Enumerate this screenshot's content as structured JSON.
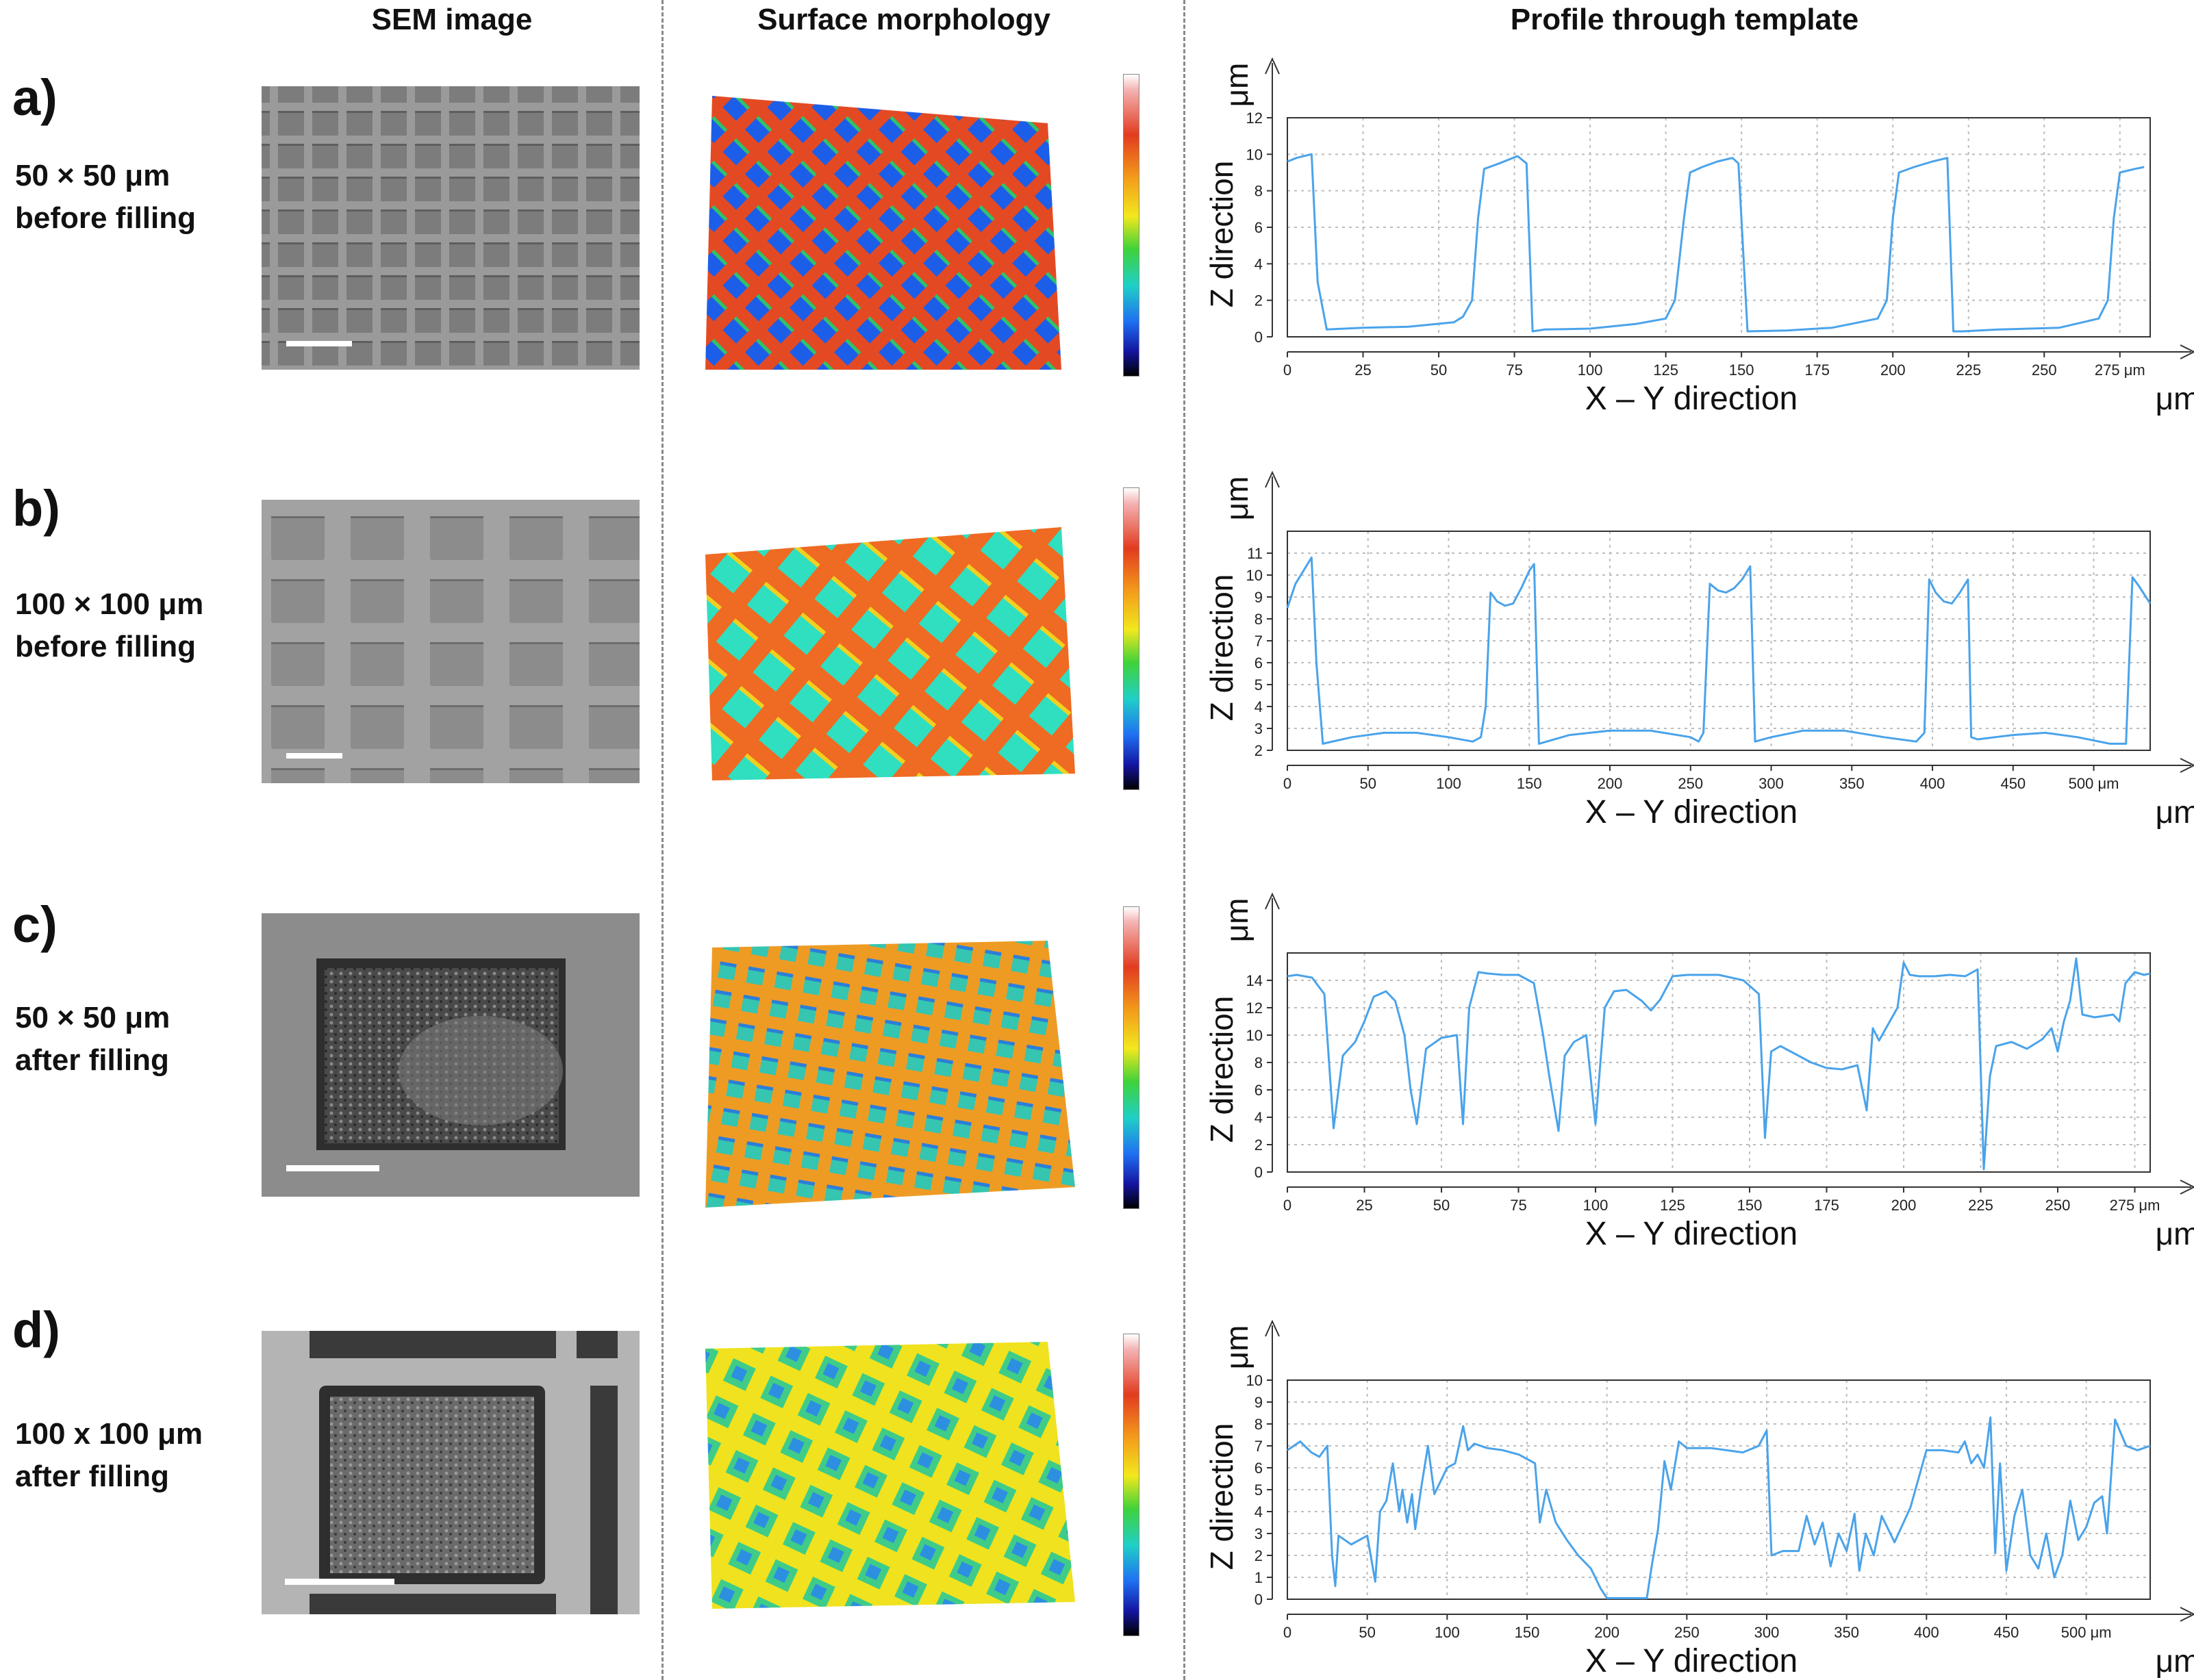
{
  "columns": {
    "sem": "SEM image",
    "morph": "Surface morphology",
    "profile": "Profile through template"
  },
  "rows": [
    {
      "letter": "a)",
      "line1": "50 × 50 μm",
      "line2": "before filling"
    },
    {
      "letter": "b)",
      "line1": "100 × 100 μm",
      "line2": "before filling"
    },
    {
      "letter": "c)",
      "line1": "50 × 50 μm",
      "line2": "after filling"
    },
    {
      "letter": "d)",
      "line1": "100 x 100 μm",
      "line2": "after filling"
    }
  ],
  "chart_data": [
    {
      "type": "line",
      "title": "",
      "xlabel": "X – Y direction",
      "ylabel": "Z direction",
      "x_unit": "μm",
      "y_unit": "μm",
      "xlim": [
        0,
        285
      ],
      "ylim": [
        0,
        12
      ],
      "xticks": [
        0,
        25,
        50,
        75,
        100,
        125,
        150,
        175,
        200,
        225,
        250,
        275
      ],
      "xtick_suffix_last": "μm",
      "yticks": [
        0,
        2,
        4,
        6,
        8,
        10,
        12
      ],
      "color": "#4aa3ea",
      "series": [
        {
          "name": "profile",
          "x": [
            0,
            3,
            8,
            10,
            13,
            25,
            40,
            55,
            58,
            61,
            63,
            65,
            70,
            76,
            79,
            81,
            85,
            100,
            115,
            125,
            128,
            131,
            133,
            137,
            142,
            147,
            149,
            152,
            165,
            180,
            195,
            198,
            200,
            202,
            207,
            213,
            218,
            220,
            223,
            235,
            255,
            268,
            271,
            273,
            275,
            280,
            283
          ],
          "y": [
            9.6,
            9.8,
            10.0,
            3.0,
            0.4,
            0.5,
            0.55,
            0.8,
            1.1,
            2.0,
            6.5,
            9.2,
            9.5,
            9.9,
            9.5,
            0.3,
            0.4,
            0.45,
            0.7,
            1.0,
            2.0,
            6.5,
            9.0,
            9.3,
            9.6,
            9.8,
            9.5,
            0.3,
            0.35,
            0.5,
            1.0,
            2.0,
            6.5,
            9.0,
            9.3,
            9.6,
            9.8,
            0.3,
            0.3,
            0.4,
            0.5,
            1.0,
            2.0,
            6.5,
            9.0,
            9.2,
            9.3
          ]
        }
      ]
    },
    {
      "type": "line",
      "title": "",
      "xlabel": "X – Y direction",
      "ylabel": "Z direction",
      "x_unit": "μm",
      "y_unit": "μm",
      "xlim": [
        0,
        535
      ],
      "ylim": [
        2,
        12
      ],
      "xticks": [
        0,
        50,
        100,
        150,
        200,
        250,
        300,
        350,
        400,
        450,
        500
      ],
      "xtick_suffix_last": "μm",
      "yticks": [
        2,
        3,
        4,
        5,
        6,
        7,
        8,
        9,
        10,
        11
      ],
      "color": "#4aa3ea",
      "series": [
        {
          "name": "profile",
          "x": [
            0,
            5,
            10,
            15,
            18,
            22,
            40,
            60,
            80,
            100,
            115,
            120,
            123,
            126,
            130,
            135,
            140,
            145,
            150,
            153,
            156,
            175,
            200,
            225,
            250,
            255,
            258,
            262,
            267,
            272,
            277,
            282,
            287,
            290,
            300,
            320,
            345,
            370,
            390,
            395,
            398,
            402,
            407,
            412,
            417,
            422,
            424,
            428,
            450,
            470,
            490,
            510,
            520,
            524,
            528,
            535
          ],
          "y": [
            8.5,
            9.6,
            10.2,
            10.8,
            6.0,
            2.3,
            2.6,
            2.8,
            2.8,
            2.6,
            2.4,
            2.6,
            4.0,
            9.2,
            8.8,
            8.6,
            8.7,
            9.4,
            10.2,
            10.5,
            2.3,
            2.7,
            2.9,
            2.9,
            2.6,
            2.4,
            2.8,
            9.6,
            9.3,
            9.2,
            9.4,
            9.8,
            10.4,
            2.4,
            2.6,
            2.9,
            2.9,
            2.6,
            2.4,
            2.8,
            9.8,
            9.2,
            8.8,
            8.7,
            9.2,
            9.8,
            2.6,
            2.5,
            2.7,
            2.8,
            2.6,
            2.3,
            2.3,
            9.9,
            9.5,
            8.7
          ]
        }
      ]
    },
    {
      "type": "line",
      "title": "",
      "xlabel": "X – Y direction",
      "ylabel": "Z direction",
      "x_unit": "μm",
      "y_unit": "μm",
      "xlim": [
        0,
        280
      ],
      "ylim": [
        0,
        16
      ],
      "xticks": [
        0,
        25,
        50,
        75,
        100,
        125,
        150,
        175,
        200,
        225,
        250,
        275
      ],
      "xtick_suffix_last": "μm",
      "yticks": [
        0,
        2,
        4,
        6,
        8,
        10,
        12,
        14
      ],
      "color": "#4aa3ea",
      "series": [
        {
          "name": "profile",
          "x": [
            0,
            3,
            8,
            12,
            15,
            18,
            22,
            25,
            28,
            32,
            35,
            38,
            40,
            42,
            45,
            50,
            55,
            57,
            59,
            62,
            65,
            70,
            75,
            80,
            83,
            85,
            88,
            90,
            93,
            97,
            100,
            103,
            106,
            110,
            115,
            118,
            121,
            125,
            130,
            140,
            148,
            153,
            155,
            157,
            160,
            165,
            170,
            175,
            180,
            185,
            188,
            190,
            192,
            195,
            198,
            200,
            202,
            205,
            210,
            215,
            220,
            224,
            226,
            228,
            230,
            235,
            240,
            245,
            248,
            250,
            252,
            254,
            256,
            258,
            262,
            268,
            270,
            272,
            275,
            278,
            280
          ],
          "y": [
            14.3,
            14.4,
            14.2,
            13.0,
            3.2,
            8.5,
            9.5,
            11.0,
            12.8,
            13.2,
            12.5,
            10.0,
            6.0,
            3.5,
            9.0,
            9.8,
            10.0,
            3.5,
            12.0,
            14.6,
            14.5,
            14.4,
            14.4,
            13.8,
            10.0,
            7.0,
            3.0,
            8.5,
            9.5,
            10.0,
            3.5,
            12.0,
            13.2,
            13.3,
            12.5,
            11.8,
            12.6,
            14.3,
            14.4,
            14.4,
            14.0,
            13.0,
            2.5,
            8.8,
            9.2,
            8.6,
            8.0,
            7.6,
            7.5,
            7.8,
            4.5,
            10.5,
            9.6,
            10.8,
            12.0,
            15.3,
            14.4,
            14.3,
            14.3,
            14.4,
            14.3,
            14.8,
            0.2,
            7.0,
            9.2,
            9.5,
            9.0,
            9.7,
            10.5,
            8.8,
            11.0,
            12.5,
            15.6,
            11.5,
            11.3,
            11.5,
            11.0,
            13.8,
            14.6,
            14.4,
            14.5
          ]
        }
      ]
    },
    {
      "type": "line",
      "title": "",
      "xlabel": "X – Y direction",
      "ylabel": "Z direction",
      "x_unit": "μm",
      "y_unit": "μm",
      "xlim": [
        0,
        540
      ],
      "ylim": [
        0,
        10
      ],
      "xticks": [
        0,
        50,
        100,
        150,
        200,
        250,
        300,
        350,
        400,
        450,
        500
      ],
      "xtick_suffix_last": "μm",
      "yticks": [
        0,
        1,
        2,
        3,
        4,
        5,
        6,
        7,
        8,
        9,
        10
      ],
      "color": "#4aa3ea",
      "series": [
        {
          "name": "profile",
          "x": [
            0,
            8,
            15,
            20,
            25,
            28,
            30,
            32,
            40,
            50,
            55,
            58,
            62,
            66,
            70,
            72,
            75,
            78,
            80,
            84,
            88,
            92,
            96,
            100,
            105,
            110,
            113,
            117,
            125,
            135,
            145,
            155,
            158,
            162,
            168,
            175,
            182,
            190,
            196,
            200,
            215,
            225,
            228,
            232,
            236,
            240,
            245,
            250,
            265,
            285,
            295,
            300,
            303,
            310,
            320,
            325,
            330,
            335,
            340,
            345,
            350,
            355,
            358,
            362,
            367,
            372,
            380,
            390,
            400,
            410,
            420,
            424,
            428,
            432,
            436,
            440,
            443,
            446,
            450,
            455,
            460,
            465,
            470,
            475,
            480,
            485,
            490,
            495,
            500,
            505,
            510,
            513,
            518,
            525,
            532,
            540
          ],
          "y": [
            6.8,
            7.2,
            6.7,
            6.5,
            7.0,
            2.0,
            0.6,
            2.9,
            2.5,
            2.9,
            0.8,
            4.0,
            4.5,
            6.2,
            4.0,
            5.0,
            3.5,
            4.8,
            3.2,
            5.2,
            7.0,
            4.8,
            5.4,
            6.0,
            6.2,
            7.9,
            6.8,
            7.1,
            6.9,
            6.8,
            6.6,
            6.2,
            3.5,
            5.0,
            3.5,
            2.7,
            2.0,
            1.4,
            0.5,
            0.05,
            0.05,
            0.05,
            1.5,
            3.2,
            6.3,
            5.0,
            7.2,
            6.9,
            6.9,
            6.7,
            7.0,
            7.7,
            2.0,
            2.2,
            2.2,
            3.8,
            2.5,
            3.5,
            1.5,
            3.0,
            2.2,
            3.9,
            1.3,
            3.0,
            2.0,
            3.8,
            2.6,
            4.2,
            6.8,
            6.8,
            6.7,
            7.2,
            6.2,
            6.6,
            6.0,
            8.3,
            2.1,
            6.2,
            1.3,
            3.8,
            5.0,
            2.0,
            1.4,
            3.0,
            1.0,
            2.0,
            4.5,
            2.7,
            3.3,
            4.4,
            4.7,
            3.0,
            8.2,
            7.0,
            6.8,
            7.0
          ]
        }
      ]
    }
  ]
}
